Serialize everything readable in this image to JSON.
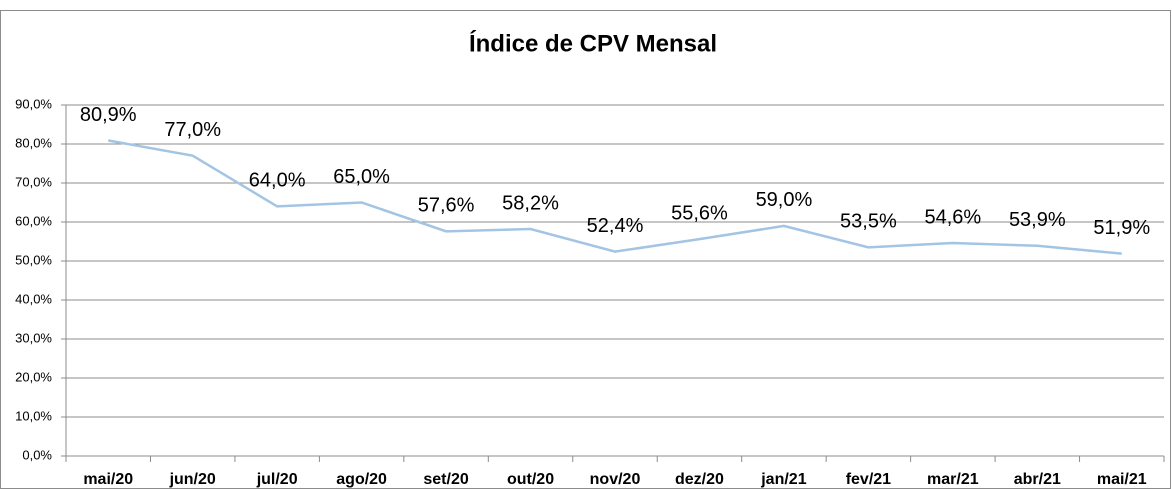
{
  "chart_data": {
    "type": "line",
    "title": "Índice de CPV Mensal",
    "categories": [
      "mai/20",
      "jun/20",
      "jul/20",
      "ago/20",
      "set/20",
      "out/20",
      "nov/20",
      "dez/20",
      "jan/21",
      "fev/21",
      "mar/21",
      "abr/21",
      "mai/21"
    ],
    "series": [
      {
        "name": "Índice de CPV",
        "color": "#a3c4e3",
        "values": [
          80.9,
          77.0,
          64.0,
          65.0,
          57.6,
          58.2,
          52.4,
          55.6,
          59.0,
          53.5,
          54.6,
          53.9,
          51.9
        ],
        "value_labels": [
          "80,9%",
          "77,0%",
          "64,0%",
          "65,0%",
          "57,6%",
          "58,2%",
          "52,4%",
          "55,6%",
          "59,0%",
          "53,5%",
          "54,6%",
          "53,9%",
          "51,9%"
        ]
      }
    ],
    "ylim": [
      0,
      90
    ],
    "yticks": [
      {
        "value": 0,
        "label": "0,0%"
      },
      {
        "value": 10,
        "label": "10,0%"
      },
      {
        "value": 20,
        "label": "20,0%"
      },
      {
        "value": 30,
        "label": "30,0%"
      },
      {
        "value": 40,
        "label": "40,0%"
      },
      {
        "value": 50,
        "label": "50,0%"
      },
      {
        "value": 60,
        "label": "60,0%"
      },
      {
        "value": 70,
        "label": "70,0%"
      },
      {
        "value": 80,
        "label": "80,0%"
      },
      {
        "value": 90,
        "label": "90,0%"
      }
    ],
    "grid": true
  }
}
